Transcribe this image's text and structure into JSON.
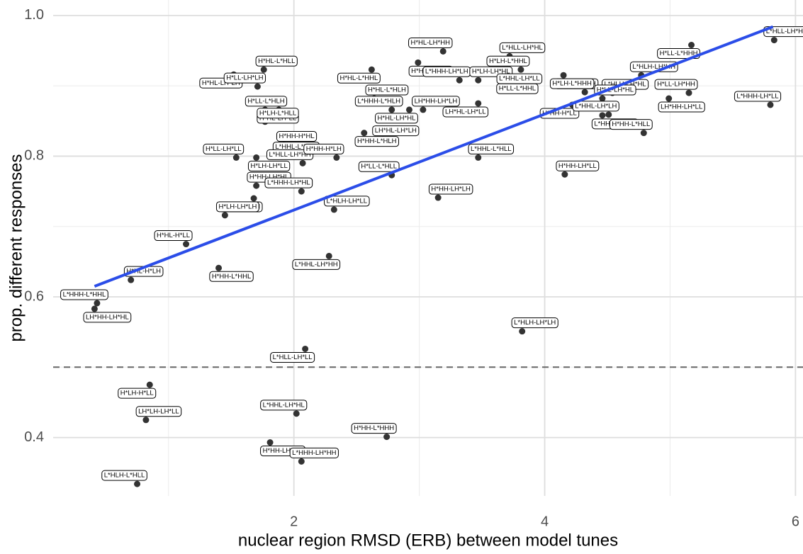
{
  "chart_data": {
    "type": "scatter",
    "x_label": "nuclear region RMSD (ERB) between model tunes",
    "y_label": "prop. different responses",
    "xlim": [
      0.08,
      6.06
    ],
    "ylim": [
      0.317,
      1.022
    ],
    "xticks": [
      2,
      4,
      6
    ],
    "yticks": [
      0.4,
      0.6,
      0.8,
      {
        "value": 1.0,
        "label": "1.0"
      }
    ],
    "minor_xticks": [
      1,
      3,
      5
    ],
    "minor_yticks": [
      0.5,
      0.7,
      0.9
    ],
    "grid": true,
    "hline": 0.5,
    "fit": {
      "x": [
        0.41,
        5.82
      ],
      "values": [
        0.615,
        0.984
      ],
      "color": "#2b4de8"
    },
    "series": [
      {
        "color": "#333333",
        "labels": [
          "H*HL-LH*LH",
          "H*HL-L*HLL",
          "H*LL-LH*LH",
          "H*HL-LH*LL",
          "H*LL-L*HLH",
          "H*LH-L*HLL",
          "L*HHL-L*HLH",
          "H*HH-H*HL",
          "H*LL-LH*LL",
          "H*LH-LH*LL",
          "L*HLL-LH*HH",
          "H*HH-LH*HL",
          "H*LH-L*HLH",
          "H*LH-LH*LH",
          "H*HL-H*LL",
          "H*HH-L*HHL",
          "L*HHH-LH*HL",
          "L*HLH-LH*LL",
          "L*HHL-LH*HH",
          "H*HL-H*LH",
          "L*HHH-L*HHL",
          "LH*HH-LH*HL",
          "H*LL-L*HLL",
          "H*HH-LH*LH",
          "H*HL-L*HHL",
          "H*HL-L*HLH",
          "L*HHH-L*HLH",
          "H*HH-L*HLH",
          "H*HH-H*LH",
          "LH*HL-LH*LH",
          "H*HL-LH*HL",
          "LH*HH-LH*LH",
          "H*HL-LH*HH",
          "H*HL-L*HHH",
          "L*HHH-LH*LH",
          "H*LH-LH*HL",
          "LH*HL-LH*LL",
          "L*HLL-LH*HL",
          "H*LH-L*HHL",
          "H*LL-L*HHL",
          "L*HHL-LH*LL",
          "L*HHL-L*HLL",
          "L*HLL-LH*LL",
          "L*HLH-LH*LH",
          "L*HHL-LH*HL",
          "H*HH-LH*HH",
          "H*HH-L*HHH",
          "L*HHH-LH*HH",
          "H*LH-H*LL",
          "LH*LH-LH*LL",
          "L*HLH-L*HLL",
          "H*LH-LH*HH",
          "H*LH-L*HHH",
          "L*HLH-LH*HL",
          "H*HH-H*LL",
          "H*LL-LH*HL",
          "L*HHL-LH*LH",
          "L*HHH-L*HLL",
          "H*HH-L*HLL",
          "L*HLH-LH*HH",
          "H*LL-L*HHH",
          "L*HLL-LH*HH",
          "H*LL-LH*HH",
          "LH*HH-LH*LL",
          "L*HHH-LH*LL",
          "H*HH-LH*LL"
        ],
        "x": [
          1.52,
          1.76,
          1.71,
          1.77,
          1.88,
          1.77,
          2.12,
          1.92,
          1.54,
          1.7,
          2.07,
          1.7,
          1.68,
          1.45,
          1.14,
          1.4,
          2.06,
          2.32,
          2.28,
          0.7,
          0.43,
          0.41,
          2.78,
          3.15,
          2.62,
          2.64,
          2.78,
          2.56,
          2.34,
          2.71,
          2.92,
          3.03,
          3.19,
          2.99,
          3.32,
          3.47,
          3.47,
          3.72,
          3.81,
          3.68,
          3.9,
          3.47,
          2.09,
          3.82,
          2.02,
          1.81,
          2.74,
          2.06,
          0.85,
          0.82,
          0.75,
          4.15,
          4.32,
          4.54,
          4.22,
          4.46,
          4.51,
          4.46,
          4.79,
          4.77,
          5.17,
          5.83,
          5.15,
          4.99,
          5.8,
          4.16
        ],
        "values": [
          0.916,
          0.923,
          0.899,
          0.866,
          0.866,
          0.849,
          0.825,
          0.816,
          0.798,
          0.798,
          0.79,
          0.758,
          0.74,
          0.716,
          0.675,
          0.641,
          0.75,
          0.724,
          0.658,
          0.624,
          0.591,
          0.583,
          0.773,
          0.741,
          0.923,
          0.882,
          0.866,
          0.833,
          0.798,
          0.824,
          0.866,
          0.866,
          0.949,
          0.933,
          0.908,
          0.908,
          0.875,
          0.942,
          0.923,
          0.908,
          0.898,
          0.798,
          0.526,
          0.551,
          0.434,
          0.393,
          0.401,
          0.366,
          0.475,
          0.425,
          0.334,
          0.915,
          0.891,
          0.89,
          0.873,
          0.882,
          0.859,
          0.858,
          0.833,
          0.915,
          0.958,
          0.965,
          0.89,
          0.882,
          0.873,
          0.774
        ]
      }
    ]
  }
}
